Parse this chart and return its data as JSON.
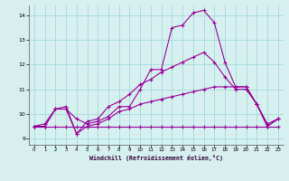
{
  "x": [
    0,
    1,
    2,
    3,
    4,
    5,
    6,
    7,
    8,
    9,
    10,
    11,
    12,
    13,
    14,
    15,
    16,
    17,
    18,
    19,
    20,
    21,
    22,
    23
  ],
  "line1": [
    9.5,
    9.6,
    10.2,
    10.2,
    9.8,
    9.6,
    9.7,
    9.9,
    10.3,
    10.3,
    11.0,
    11.8,
    11.8,
    13.5,
    13.6,
    14.1,
    14.2,
    13.7,
    12.1,
    11.1,
    11.1,
    10.4,
    9.6,
    9.8
  ],
  "line2": [
    9.5,
    9.5,
    10.2,
    10.3,
    9.2,
    9.7,
    9.8,
    10.3,
    10.5,
    10.8,
    11.2,
    11.4,
    11.7,
    11.9,
    12.1,
    12.3,
    12.5,
    12.1,
    11.5,
    11.0,
    11.0,
    10.4,
    9.5,
    9.8
  ],
  "line3": [
    9.5,
    9.5,
    10.2,
    10.2,
    9.2,
    9.5,
    9.6,
    9.8,
    10.1,
    10.2,
    10.4,
    10.5,
    10.6,
    10.7,
    10.8,
    10.9,
    11.0,
    11.1,
    11.1,
    11.1,
    11.1,
    10.4,
    9.5,
    9.8
  ],
  "line4": [
    9.5,
    9.5,
    9.5,
    9.5,
    9.5,
    9.5,
    9.5,
    9.5,
    9.5,
    9.5,
    9.5,
    9.5,
    9.5,
    9.5,
    9.5,
    9.5,
    9.5,
    9.5,
    9.5,
    9.5,
    9.5,
    9.5,
    9.5,
    9.5
  ],
  "bg_color": "#d6f0f0",
  "grid_color": "#aadddd",
  "line_color": "#990099",
  "xlim": [
    -0.5,
    23.5
  ],
  "ylim": [
    8.75,
    14.4
  ],
  "yticks": [
    9,
    10,
    11,
    12,
    13,
    14
  ],
  "xticks": [
    0,
    1,
    2,
    3,
    4,
    5,
    6,
    7,
    8,
    9,
    10,
    11,
    12,
    13,
    14,
    15,
    16,
    17,
    18,
    19,
    20,
    21,
    22,
    23
  ],
  "xlabel": "Windchill (Refroidissement éolien,°C)"
}
